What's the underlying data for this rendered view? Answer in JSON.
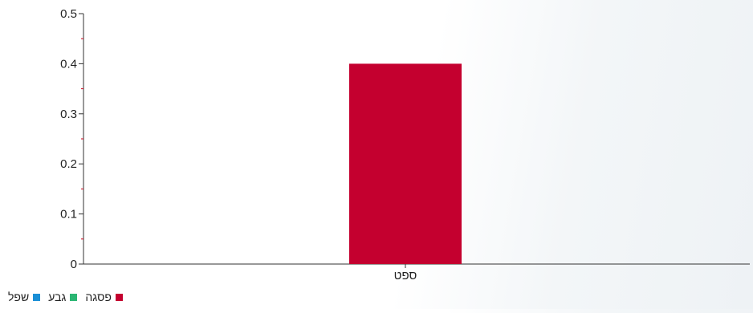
{
  "chart_data": {
    "type": "bar",
    "categories": [
      "ספט"
    ],
    "series": [
      {
        "name": "שפל",
        "values": [
          0
        ],
        "color": "#1a8fd6"
      },
      {
        "name": "גבע",
        "values": [
          0
        ],
        "color": "#2bb673"
      },
      {
        "name": "פסגה",
        "values": [
          0.4
        ],
        "color": "#c4002f"
      }
    ],
    "ylim": [
      0,
      0.5
    ],
    "yticks": [
      "0",
      "0.1",
      "0.2",
      "0.3",
      "0.4",
      "0.5"
    ],
    "title": "",
    "xlabel": "",
    "ylabel": "",
    "grid": false,
    "legend_position": "bottom-left"
  }
}
